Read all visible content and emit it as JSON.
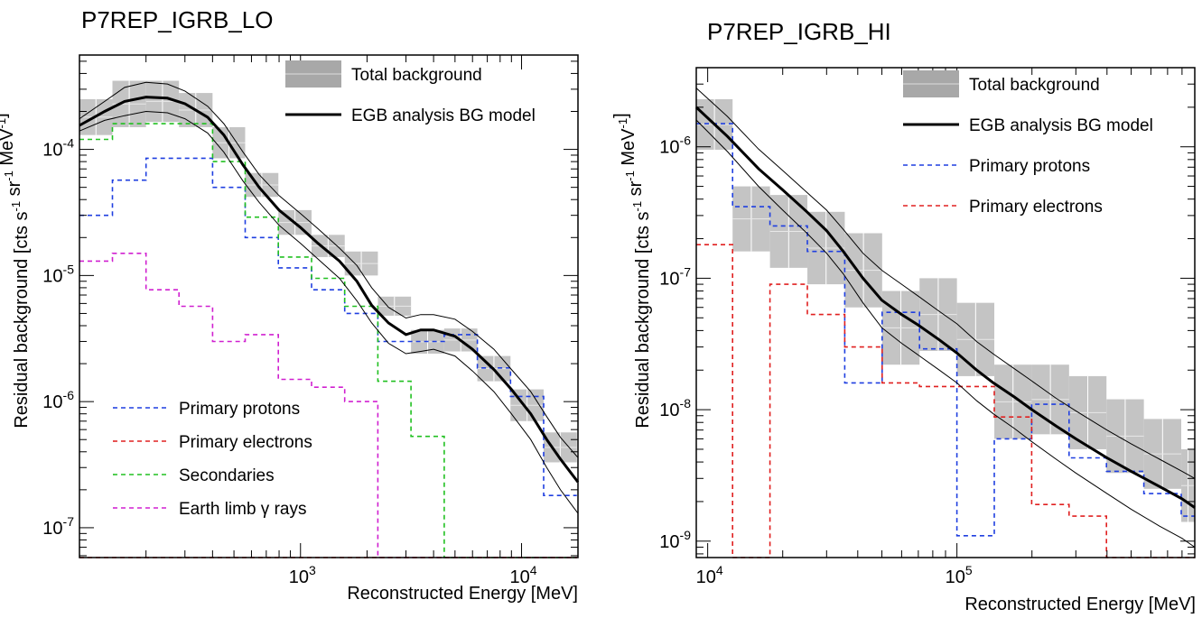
{
  "chart_data": [
    {
      "type": "line",
      "title": "P7REP_IGRB_LO",
      "xlabel": "Reconstructed Energy [MeV]",
      "ylabel": "Residual background [cts s^-1 sr^-1 MeV^-1]",
      "xscale": "log",
      "yscale": "log",
      "xlim": [
        100,
        18000
      ],
      "ylim": [
        5.8e-08,
        0.00056
      ],
      "xticks": [
        {
          "value": 1000,
          "base": "10",
          "exp": "3"
        },
        {
          "value": 10000,
          "base": "10",
          "exp": "4"
        }
      ],
      "yticks": [
        {
          "value": 1e-07,
          "base": "10",
          "exp": "-7"
        },
        {
          "value": 1e-06,
          "base": "10",
          "exp": "-6"
        },
        {
          "value": 1e-05,
          "base": "10",
          "exp": "-5"
        },
        {
          "value": 0.0001,
          "base": "10",
          "exp": "-4"
        }
      ],
      "legend_top": [
        {
          "label": "Total background",
          "kind": "band",
          "color": "#a8a8a8"
        },
        {
          "label": "EGB analysis BG model",
          "kind": "line",
          "color": "#000000"
        }
      ],
      "legend_bottom": [
        {
          "label": "Primary protons",
          "kind": "dash",
          "color": "#1f3fe0"
        },
        {
          "label": "Primary electrons",
          "kind": "dash",
          "color": "#e02020"
        },
        {
          "label": "Secondaries",
          "kind": "dash",
          "color": "#20c020"
        },
        {
          "label": "Earth limb γ rays",
          "kind": "dash",
          "color": "#d020d0"
        }
      ],
      "bin_edges": [
        100,
        141,
        200,
        282,
        400,
        562,
        794,
        1122,
        1585,
        2239,
        3162,
        4467,
        6310,
        8913,
        12589,
        17783
      ],
      "total_background": {
        "lower": [
          0.00013,
          0.00015,
          0.000165,
          0.00015,
          8.5e-05,
          4.2e-05,
          2.1e-05,
          1.4e-05,
          1e-05,
          4.8e-06,
          2.4e-06,
          2.5e-06,
          1.45e-06,
          7e-07,
          3.3e-07,
          1.05e-07
        ],
        "upper": [
          0.00025,
          0.00035,
          0.00035,
          0.00028,
          0.00015,
          6.5e-05,
          3.3e-05,
          2.1e-05,
          1.55e-05,
          6.8e-06,
          3.7e-06,
          3.8e-06,
          2.3e-06,
          1.25e-06,
          5.7e-07,
          2.6e-07
        ]
      },
      "model": {
        "x": [
          100,
          130,
          160,
          200,
          250,
          300,
          380,
          450,
          550,
          650,
          800,
          1000,
          1200,
          1500,
          1800,
          2100,
          2500,
          3000,
          3500,
          4000,
          5000,
          6000,
          7500,
          9000,
          11000,
          13000,
          15000,
          18000
        ],
        "y": [
          0.000155,
          0.0002,
          0.00024,
          0.00026,
          0.000255,
          0.00023,
          0.00018,
          0.00013,
          7.5e-05,
          5e-05,
          3.3e-05,
          2.4e-05,
          1.8e-05,
          1.3e-05,
          9e-06,
          5.8e-06,
          4.2e-06,
          3.4e-06,
          3.7e-06,
          3.7e-06,
          3.3e-06,
          2.6e-06,
          1.8e-06,
          1.25e-06,
          8e-07,
          5e-07,
          3.5e-07,
          2.3e-07
        ],
        "upper": [
          0.000175,
          0.00024,
          0.00031,
          0.00034,
          0.00033,
          0.00029,
          0.00022,
          0.00016,
          9.5e-05,
          6.3e-05,
          4.3e-05,
          3.1e-05,
          2.35e-05,
          1.65e-05,
          1.2e-05,
          8e-06,
          5.6e-06,
          4.6e-06,
          4.9e-06,
          4.9e-06,
          4.5e-06,
          3.6e-06,
          2.6e-06,
          1.8e-06,
          1.2e-06,
          7.6e-07,
          5.2e-07,
          3.6e-07
        ],
        "lower": [
          0.00014,
          0.00017,
          0.000185,
          0.0002,
          0.000195,
          0.000175,
          0.000135,
          9.5e-05,
          5.6e-05,
          3.8e-05,
          2.5e-05,
          1.8e-05,
          1.35e-05,
          9.5e-06,
          6.3e-06,
          4.2e-06,
          2.9e-06,
          2.4e-06,
          2.5e-06,
          2.6e-06,
          2.3e-06,
          1.75e-06,
          1.2e-06,
          8e-07,
          5e-07,
          3e-07,
          2e-07,
          1.3e-07
        ]
      },
      "histograms": [
        {
          "label": "Primary protons",
          "color": "#1f3fe0",
          "values": [
            3e-05,
            5.7e-05,
            8.5e-05,
            8.5e-05,
            5e-05,
            2e-05,
            1.15e-05,
            7.7e-06,
            5e-06,
            3e-06,
            3e-06,
            3.4e-06,
            1.85e-06,
            1.1e-06,
            1.8e-07
          ]
        },
        {
          "label": "Secondaries",
          "color": "#20c020",
          "values": [
            0.00012,
            0.00016,
            0.00016,
            0.00016,
            8e-05,
            2.9e-05,
            1.4e-05,
            9.5e-06,
            5.7e-06,
            1.45e-06,
            5.3e-07,
            5.8e-08,
            5.8e-08,
            5.8e-08,
            5.8e-08
          ]
        },
        {
          "label": "Earth limb γ rays",
          "color": "#d020d0",
          "values": [
            1.3e-05,
            1.5e-05,
            7.7e-06,
            5.7e-06,
            3e-06,
            3.4e-06,
            1.5e-06,
            1.3e-06,
            1e-06,
            5.8e-08,
            5.8e-08,
            5.8e-08,
            5.8e-08,
            5.8e-08,
            5.8e-08
          ]
        },
        {
          "label": "Primary electrons",
          "color": "#e02020",
          "values": [
            5.8e-08,
            5.8e-08,
            5.8e-08,
            5.8e-08,
            5.8e-08,
            5.8e-08,
            5.8e-08,
            5.8e-08,
            5.8e-08,
            5.8e-08,
            5.8e-08,
            5.8e-08,
            5.8e-08,
            5.8e-08,
            5.8e-08
          ]
        }
      ]
    },
    {
      "type": "line",
      "title": "P7REP_IGRB_HI",
      "xlabel": "Reconstructed Energy [MeV]",
      "ylabel": "Residual background [cts s^-1 sr^-1 MeV^-1]",
      "xscale": "log",
      "yscale": "log",
      "xlim": [
        9000,
        900000
      ],
      "ylim": [
        7.5e-10,
        4e-06
      ],
      "xticks": [
        {
          "value": 10000,
          "base": "10",
          "exp": "4"
        },
        {
          "value": 100000,
          "base": "10",
          "exp": "5"
        }
      ],
      "yticks": [
        {
          "value": 1e-09,
          "base": "10",
          "exp": "-9"
        },
        {
          "value": 1e-08,
          "base": "10",
          "exp": "-8"
        },
        {
          "value": 1e-07,
          "base": "10",
          "exp": "-7"
        },
        {
          "value": 1e-06,
          "base": "10",
          "exp": "-6"
        }
      ],
      "legend_top": [
        {
          "label": "Total background",
          "kind": "band",
          "color": "#a8a8a8"
        },
        {
          "label": "EGB analysis BG model",
          "kind": "line",
          "color": "#000000"
        },
        {
          "label": "Primary protons",
          "kind": "dash",
          "color": "#1f3fe0"
        },
        {
          "label": "Primary electrons",
          "kind": "dash",
          "color": "#e02020"
        }
      ],
      "bin_edges": [
        9000,
        12589,
        17783,
        25119,
        35481,
        50119,
        70795,
        100000,
        141254,
        199526,
        281838,
        398107,
        562341,
        794328,
        900000
      ],
      "total_background": {
        "lower": [
          9.5e-07,
          1.6e-07,
          1.2e-07,
          9e-08,
          6e-08,
          2.2e-08,
          2.8e-08,
          1.8e-08,
          6e-09,
          6.5e-09,
          5e-09,
          3.3e-09,
          2.5e-09,
          1.4e-09,
          1.1e-09
        ],
        "upper": [
          2.3e-06,
          5e-07,
          4.3e-07,
          3.2e-07,
          2.2e-07,
          8e-08,
          1e-07,
          6.5e-08,
          2.2e-08,
          2.2e-08,
          1.8e-08,
          1.2e-08,
          8.5e-09,
          5e-09,
          4.2e-09
        ]
      },
      "model": {
        "x": [
          9000,
          12000,
          16000,
          20000,
          25000,
          30000,
          35000,
          42000,
          50000,
          60000,
          70000,
          85000,
          100000,
          120000,
          140000,
          170000,
          200000,
          250000,
          300000,
          400000,
          500000,
          650000,
          800000,
          900000
        ],
        "y": [
          2e-06,
          1.2e-06,
          6.8e-07,
          4.7e-07,
          3.2e-07,
          2.3e-07,
          1.6e-07,
          1e-07,
          6.8e-08,
          5.3e-08,
          4.4e-08,
          3.4e-08,
          2.7e-08,
          2e-08,
          1.6e-08,
          1.25e-08,
          1e-08,
          7.5e-09,
          6e-09,
          4.3e-09,
          3.4e-09,
          2.6e-09,
          2.1e-09,
          1.8e-09
        ],
        "upper": [
          2.8e-06,
          1.7e-06,
          9.6e-07,
          6.6e-07,
          4.5e-07,
          3.3e-07,
          2.35e-07,
          1.55e-07,
          1.15e-07,
          9e-08,
          7.3e-08,
          5.6e-08,
          4.5e-08,
          3.3e-08,
          2.65e-08,
          2.05e-08,
          1.65e-08,
          1.22e-08,
          9.8e-09,
          7e-09,
          5.5e-09,
          4.2e-09,
          3.4e-09,
          3e-09
        ],
        "lower": [
          1.6e-06,
          9.2e-07,
          5e-07,
          3.3e-07,
          2.2e-07,
          1.55e-07,
          1.08e-07,
          6.5e-08,
          4.2e-08,
          3.2e-08,
          2.6e-08,
          2e-08,
          1.6e-08,
          1.17e-08,
          9.3e-09,
          7.2e-09,
          5.7e-09,
          4.2e-09,
          3.3e-09,
          2.3e-09,
          1.75e-09,
          1.3e-09,
          1.05e-09,
          9e-10
        ]
      },
      "histograms": [
        {
          "label": "Primary protons",
          "color": "#1f3fe0",
          "values": [
            1.5e-06,
            3.5e-07,
            2.5e-07,
            1.6e-07,
            1.6e-08,
            5.5e-08,
            2.9e-08,
            1.1e-09,
            6e-09,
            1.1e-08,
            4.3e-09,
            3.4e-09,
            2.3e-09,
            1.55e-09
          ]
        },
        {
          "label": "Primary electrons",
          "color": "#e02020",
          "values": [
            1.8e-07,
            7.5e-10,
            9e-08,
            5.3e-08,
            3e-08,
            1.6e-08,
            1.5e-08,
            1.5e-08,
            8.8e-09,
            1.9e-09,
            1.55e-09,
            7.5e-10,
            7.5e-10,
            7.5e-10
          ]
        }
      ]
    }
  ]
}
